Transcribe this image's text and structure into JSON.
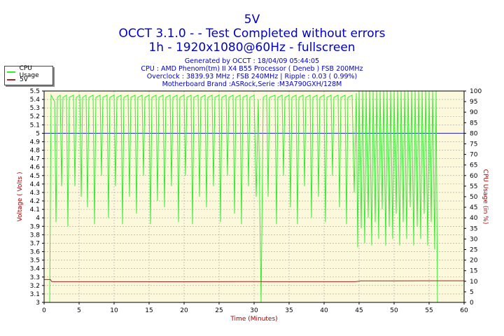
{
  "colors": {
    "title": "#0000cc",
    "cpu": "#33ee33",
    "voltage": "#aa2222",
    "reference": "#2222cc",
    "plot_bg": "#fbf8dc",
    "grid": "#a0a0a0",
    "axis_label": "#aa0000"
  },
  "chart_data": {
    "type": "line",
    "title": "5V",
    "subtitle_1": "OCCT 3.1.0 -  - Test Completed without errors",
    "subtitle_2": "1h - 1920x1080@60Hz - fullscreen",
    "info": [
      "Generated by OCCT : 18/04/09 05:44:05",
      "CPU : AMD Phenom(tm) II X4 B55 Processor ( Deneb ) FSB 200MHz",
      "Overclock : 3839.93 MHz ; FSB 240MHz | Ripple : 0.03 ( 0.99%)",
      "Motherboard Brand :ASRock,Serie :M3A790GXH/128M"
    ],
    "xlabel": "Time (Minutes)",
    "ylabel_left": "Voltage ( Volts )",
    "ylabel_right": "CPU Usage (in %)",
    "xlim": [
      0,
      60
    ],
    "ylim_left": [
      3,
      5.5
    ],
    "ylim_right": [
      0,
      100
    ],
    "x_ticks": [
      "0",
      "5",
      "10",
      "15",
      "20",
      "25",
      "30",
      "35",
      "40",
      "45",
      "50",
      "55",
      "60"
    ],
    "y_ticks_left": [
      "3",
      "3.1",
      "3.2",
      "3.3",
      "3.4",
      "3.5",
      "3.6",
      "3.7",
      "3.8",
      "3.9",
      "4",
      "4.1",
      "4.2",
      "4.3",
      "4.4",
      "4.5",
      "4.6",
      "4.7",
      "4.8",
      "4.9",
      "5",
      "5.1",
      "5.2",
      "5.3",
      "5.4",
      "5.5"
    ],
    "y_ticks_right": [
      "0",
      "5",
      "10",
      "15",
      "20",
      "25",
      "30",
      "35",
      "40",
      "45",
      "50",
      "55",
      "60",
      "65",
      "70",
      "75",
      "80",
      "85",
      "90",
      "95",
      "100"
    ],
    "reference_line_left": 5.0,
    "legend": [
      "CPU Usage",
      "5V"
    ],
    "series": [
      {
        "name": "CPU Usage",
        "axis": "right",
        "points": [
          [
            0,
            0
          ],
          [
            0.8,
            0
          ],
          [
            1.0,
            98
          ],
          [
            1.5,
            95
          ],
          [
            1.7,
            38
          ],
          [
            1.9,
            97
          ],
          [
            2.3,
            98
          ],
          [
            2.5,
            55
          ],
          [
            2.7,
            97
          ],
          [
            3.2,
            98
          ],
          [
            3.4,
            36
          ],
          [
            3.6,
            97
          ],
          [
            4.2,
            98
          ],
          [
            4.4,
            55
          ],
          [
            4.6,
            97
          ],
          [
            5.1,
            98
          ],
          [
            5.3,
            50
          ],
          [
            5.5,
            97
          ],
          [
            6.0,
            98
          ],
          [
            6.2,
            45
          ],
          [
            6.4,
            97
          ],
          [
            7.0,
            98
          ],
          [
            7.2,
            37
          ],
          [
            7.4,
            97
          ],
          [
            8.0,
            98
          ],
          [
            8.2,
            60
          ],
          [
            8.4,
            97
          ],
          [
            9.0,
            98
          ],
          [
            9.2,
            40
          ],
          [
            9.4,
            97
          ],
          [
            10.0,
            98
          ],
          [
            10.2,
            55
          ],
          [
            10.4,
            97
          ],
          [
            11.0,
            98
          ],
          [
            11.2,
            37
          ],
          [
            11.4,
            97
          ],
          [
            12.0,
            98
          ],
          [
            12.2,
            50
          ],
          [
            12.4,
            97
          ],
          [
            13.0,
            98
          ],
          [
            13.2,
            42
          ],
          [
            13.4,
            97
          ],
          [
            14.0,
            98
          ],
          [
            14.2,
            60
          ],
          [
            14.4,
            97
          ],
          [
            15.0,
            98
          ],
          [
            15.2,
            37
          ],
          [
            15.4,
            97
          ],
          [
            16.0,
            98
          ],
          [
            16.2,
            48
          ],
          [
            16.4,
            97
          ],
          [
            17.0,
            98
          ],
          [
            17.2,
            45
          ],
          [
            17.4,
            97
          ],
          [
            18.0,
            98
          ],
          [
            18.2,
            55
          ],
          [
            18.4,
            97
          ],
          [
            19.0,
            98
          ],
          [
            19.2,
            38
          ],
          [
            19.4,
            97
          ],
          [
            20.0,
            98
          ],
          [
            20.2,
            60
          ],
          [
            20.4,
            97
          ],
          [
            21.0,
            98
          ],
          [
            21.2,
            37
          ],
          [
            21.4,
            97
          ],
          [
            22.0,
            98
          ],
          [
            22.2,
            50
          ],
          [
            22.4,
            97
          ],
          [
            23.0,
            98
          ],
          [
            23.2,
            45
          ],
          [
            23.4,
            97
          ],
          [
            24.0,
            98
          ],
          [
            24.2,
            55
          ],
          [
            24.4,
            97
          ],
          [
            25.0,
            98
          ],
          [
            25.2,
            38
          ],
          [
            25.4,
            97
          ],
          [
            26.0,
            98
          ],
          [
            26.2,
            60
          ],
          [
            26.4,
            97
          ],
          [
            27.0,
            98
          ],
          [
            27.2,
            42
          ],
          [
            27.4,
            97
          ],
          [
            28.0,
            98
          ],
          [
            28.2,
            37
          ],
          [
            28.4,
            97
          ],
          [
            29.0,
            98
          ],
          [
            29.2,
            55
          ],
          [
            29.4,
            97
          ],
          [
            30.0,
            98
          ],
          [
            30.3,
            50
          ],
          [
            30.6,
            96
          ],
          [
            31.0,
            0
          ],
          [
            31.3,
            97
          ],
          [
            31.8,
            98
          ],
          [
            32.0,
            50
          ],
          [
            32.2,
            97
          ],
          [
            33.0,
            98
          ],
          [
            33.2,
            37
          ],
          [
            33.4,
            97
          ],
          [
            34.0,
            98
          ],
          [
            34.2,
            60
          ],
          [
            34.4,
            97
          ],
          [
            35.0,
            98
          ],
          [
            35.2,
            45
          ],
          [
            35.4,
            97
          ],
          [
            36.0,
            98
          ],
          [
            36.2,
            37
          ],
          [
            36.4,
            97
          ],
          [
            37.0,
            98
          ],
          [
            37.2,
            55
          ],
          [
            37.4,
            97
          ],
          [
            38.0,
            98
          ],
          [
            38.2,
            40
          ],
          [
            38.4,
            97
          ],
          [
            39.0,
            98
          ],
          [
            39.2,
            50
          ],
          [
            39.4,
            97
          ],
          [
            40.0,
            98
          ],
          [
            40.2,
            38
          ],
          [
            40.4,
            97
          ],
          [
            41.0,
            98
          ],
          [
            41.2,
            60
          ],
          [
            41.4,
            97
          ],
          [
            42.0,
            98
          ],
          [
            42.2,
            45
          ],
          [
            42.4,
            97
          ],
          [
            43.0,
            98
          ],
          [
            43.2,
            37
          ],
          [
            43.4,
            97
          ],
          [
            44.0,
            98
          ],
          [
            44.3,
            52
          ],
          [
            44.6,
            99
          ],
          [
            44.8,
            26
          ],
          [
            45.0,
            100
          ],
          [
            45.3,
            35
          ],
          [
            45.5,
            100
          ],
          [
            45.8,
            28
          ],
          [
            46.0,
            100
          ],
          [
            46.3,
            40
          ],
          [
            46.5,
            100
          ],
          [
            46.8,
            27
          ],
          [
            47.0,
            100
          ],
          [
            47.3,
            38
          ],
          [
            47.5,
            100
          ],
          [
            47.8,
            30
          ],
          [
            48.0,
            100
          ],
          [
            48.3,
            44
          ],
          [
            48.5,
            100
          ],
          [
            48.8,
            27
          ],
          [
            49.0,
            100
          ],
          [
            49.3,
            36
          ],
          [
            49.5,
            100
          ],
          [
            49.8,
            30
          ],
          [
            50.0,
            100
          ],
          [
            50.3,
            42
          ],
          [
            50.5,
            100
          ],
          [
            50.8,
            27
          ],
          [
            51.0,
            100
          ],
          [
            51.3,
            38
          ],
          [
            51.5,
            100
          ],
          [
            51.8,
            30
          ],
          [
            52.0,
            100
          ],
          [
            52.3,
            45
          ],
          [
            52.5,
            100
          ],
          [
            52.8,
            27
          ],
          [
            53.0,
            100
          ],
          [
            53.3,
            36
          ],
          [
            53.5,
            100
          ],
          [
            53.8,
            30
          ],
          [
            54.0,
            100
          ],
          [
            54.3,
            42
          ],
          [
            54.5,
            100
          ],
          [
            54.8,
            27
          ],
          [
            55.0,
            100
          ],
          [
            55.3,
            38
          ],
          [
            55.5,
            100
          ],
          [
            55.8,
            25
          ],
          [
            56.0,
            100
          ],
          [
            56.2,
            0
          ],
          [
            60,
            0
          ]
        ]
      },
      {
        "name": "5V",
        "axis": "left",
        "points": [
          [
            0,
            3.27
          ],
          [
            0.9,
            3.27
          ],
          [
            1.1,
            3.245
          ],
          [
            10,
            3.245
          ],
          [
            20,
            3.244
          ],
          [
            30,
            3.246
          ],
          [
            40,
            3.245
          ],
          [
            44.5,
            3.245
          ],
          [
            45.2,
            3.255
          ],
          [
            50,
            3.255
          ],
          [
            55,
            3.256
          ],
          [
            60,
            3.256
          ]
        ]
      }
    ]
  }
}
